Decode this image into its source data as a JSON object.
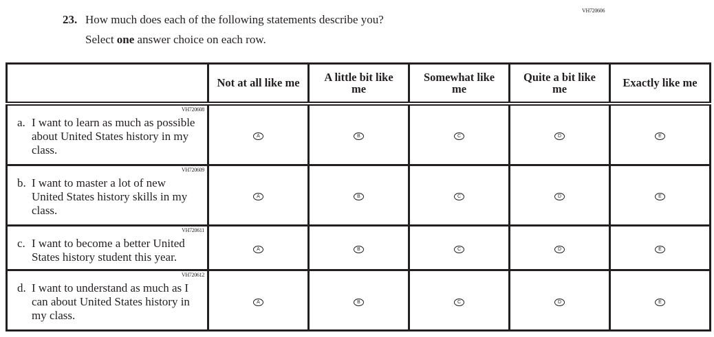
{
  "question": {
    "code": "VH720606",
    "number": "23.",
    "text": "How much does each of the following statements describe you?",
    "instruction_pre": "Select ",
    "instruction_bold": "one",
    "instruction_post": " answer choice on each row."
  },
  "columns": [
    "Not at all like me",
    "A little bit like me",
    "Somewhat like me",
    "Quite a bit like me",
    "Exactly like me"
  ],
  "bubbles": [
    "A",
    "B",
    "C",
    "D",
    "E"
  ],
  "rows": [
    {
      "code": "VH720608",
      "letter": "a.",
      "text": "I want to learn as much as possible about United States history in my class."
    },
    {
      "code": "VH720609",
      "letter": "b.",
      "text": "I want to master a lot of new United States history skills in my class."
    },
    {
      "code": "VH720611",
      "letter": "c.",
      "text": "I want to become a better United States history student this year."
    },
    {
      "code": "VH720612",
      "letter": "d.",
      "text": "I want to understand as much as I can about United States history in my class."
    }
  ]
}
